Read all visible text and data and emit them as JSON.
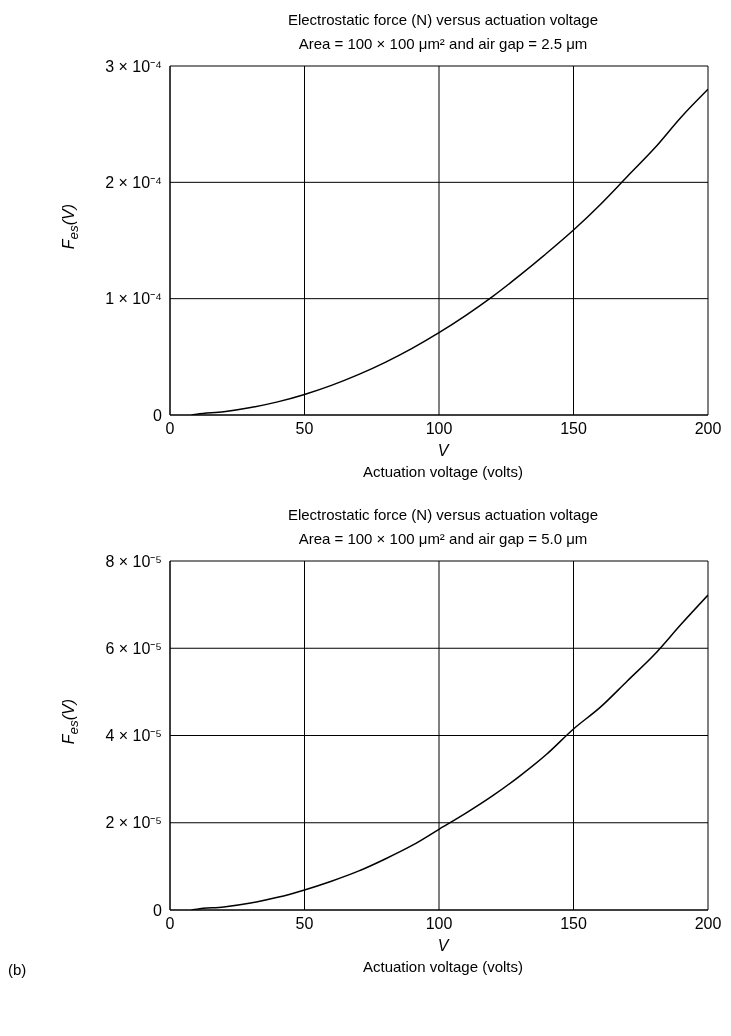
{
  "chart_data": [
    {
      "type": "line",
      "title": "Electrostatic force (N) versus actuation voltage",
      "subtitle": "Area = 100 × 100 μm² and air gap = 2.5 μm",
      "xlabel": "V",
      "ylabel": "F$_{es}$(V)",
      "annotations": [
        "Actuation voltage (volts)"
      ],
      "x": [
        8,
        10,
        20,
        30,
        40,
        50,
        60,
        70,
        80,
        90,
        100,
        110,
        120,
        130,
        140,
        150,
        160,
        170,
        180,
        190,
        200
      ],
      "series": [
        {
          "color": "#000000",
          "values": [
            0,
            7e-07,
            2.8e-06,
            6.4e-06,
            1.13e-05,
            1.77e-05,
            2.55e-05,
            3.47e-05,
            4.53e-05,
            5.73e-05,
            7.08e-05,
            8.57e-05,
            0.000102,
            0.00012,
            0.000139,
            0.000159,
            0.000181,
            0.000205,
            0.000229,
            0.000256,
            0.00028
          ]
        }
      ],
      "xlim": [
        0,
        200
      ],
      "xticks": [
        0,
        50,
        100,
        150,
        200
      ],
      "ylim": [
        0,
        0.0003
      ],
      "yticks": [
        0,
        {
          "value": 0.0001,
          "label": "1 × 10⁻⁴"
        },
        {
          "value": 0.0002,
          "label": "2 × 10⁻⁴"
        },
        {
          "value": 0.0003,
          "label": "3 × 10⁻⁴"
        }
      ],
      "grid": true,
      "legend": false,
      "marker": "none",
      "line_style": "solid"
    },
    {
      "type": "line",
      "title": "Electrostatic force (N) versus actuation voltage",
      "subtitle": "Area = 100 × 100 μm² and air gap = 5.0 μm",
      "xlabel": "V",
      "ylabel": "F$_{es}$(V)",
      "annotations": [
        "Actuation voltage (volts)",
        "(b)"
      ],
      "x": [
        8,
        10,
        20,
        30,
        40,
        50,
        60,
        70,
        80,
        90,
        100,
        110,
        120,
        130,
        140,
        150,
        160,
        170,
        180,
        190,
        200
      ],
      "series": [
        {
          "color": "#000000",
          "values": [
            0,
            2e-07,
            7e-07,
            1.6e-06,
            2.9e-06,
            4.6e-06,
            6.6e-06,
            8.9e-06,
            1.17e-05,
            1.48e-05,
            1.85e-05,
            2.22e-05,
            2.62e-05,
            3.07e-05,
            3.57e-05,
            4.15e-05,
            4.65e-05,
            5.25e-05,
            5.85e-05,
            6.55e-05,
            7.22e-05
          ]
        }
      ],
      "xlim": [
        0,
        200
      ],
      "xticks": [
        0,
        50,
        100,
        150,
        200
      ],
      "ylim": [
        0,
        8e-05
      ],
      "yticks": [
        0,
        {
          "value": 2e-05,
          "label": "2 × 10⁻⁵"
        },
        {
          "value": 4e-05,
          "label": "4 × 10⁻⁵"
        },
        {
          "value": 6e-05,
          "label": "6 × 10⁻⁵"
        },
        {
          "value": 8e-05,
          "label": "8 × 10⁻⁵"
        }
      ],
      "grid": true,
      "legend": false,
      "marker": "none",
      "line_style": "solid"
    }
  ]
}
